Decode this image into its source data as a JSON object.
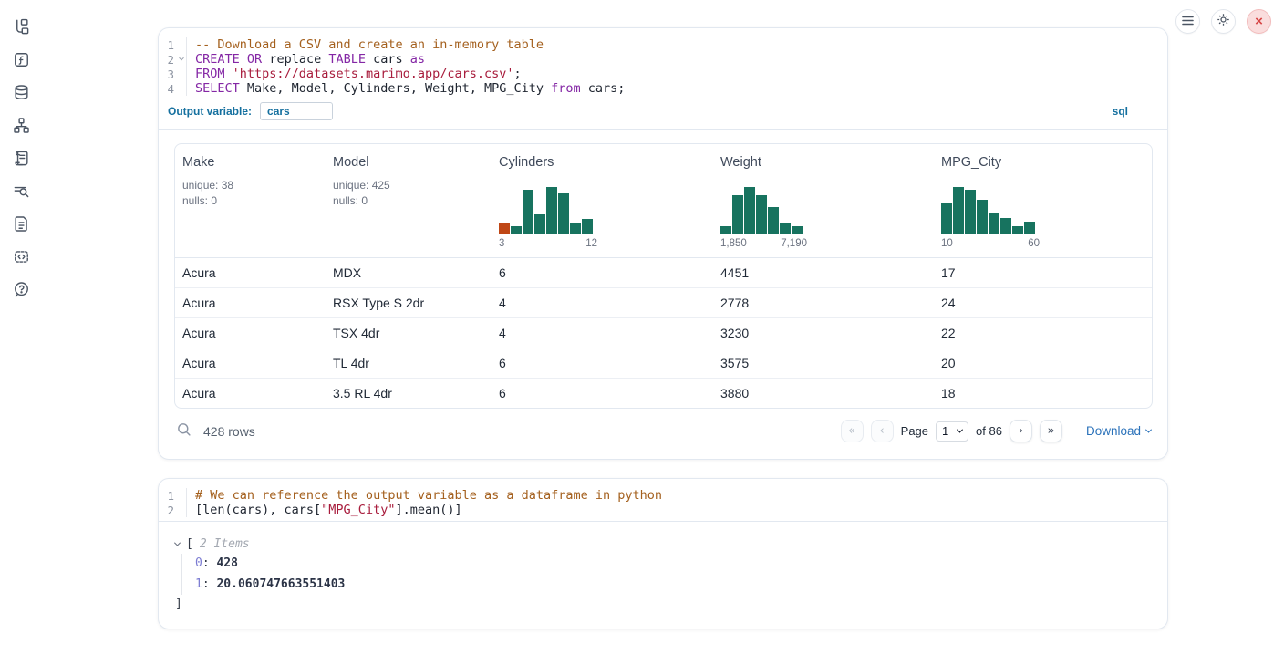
{
  "sidebar": {
    "icons": [
      {
        "name": "file-tree-icon"
      },
      {
        "name": "function-icon"
      },
      {
        "name": "database-icon"
      },
      {
        "name": "dependency-graph-icon"
      },
      {
        "name": "scratchpad-icon"
      },
      {
        "name": "logs-search-icon"
      },
      {
        "name": "documentation-icon"
      },
      {
        "name": "snippets-icon"
      },
      {
        "name": "help-icon"
      }
    ]
  },
  "topbar": {
    "buttons": [
      {
        "name": "menu-button",
        "icon": "hamburger-icon"
      },
      {
        "name": "settings-button",
        "icon": "gear-icon"
      },
      {
        "name": "shutdown-button",
        "icon": "close-icon",
        "glyph": "×"
      }
    ]
  },
  "sql_cell": {
    "lines": [
      {
        "num": "1",
        "tokens": [
          [
            "comment",
            "-- Download a CSV and create an in-memory table"
          ]
        ]
      },
      {
        "num": "2",
        "fold": true,
        "tokens": [
          [
            "keyword",
            "CREATE"
          ],
          [
            "plain",
            " "
          ],
          [
            "keyword",
            "OR"
          ],
          [
            "plain",
            " replace "
          ],
          [
            "keyword",
            "TABLE"
          ],
          [
            "plain",
            " cars "
          ],
          [
            "keyword",
            "as"
          ]
        ]
      },
      {
        "num": "3",
        "tokens": [
          [
            "keyword",
            "FROM"
          ],
          [
            "plain",
            " "
          ],
          [
            "string",
            "'https://datasets.marimo.app/cars.csv'"
          ],
          [
            "plain",
            ";"
          ]
        ]
      },
      {
        "num": "4",
        "tokens": [
          [
            "keyword",
            "SELECT"
          ],
          [
            "plain",
            " Make, Model, Cylinders, Weight, MPG_City "
          ],
          [
            "keyword",
            "from"
          ],
          [
            "plain",
            " cars;"
          ]
        ]
      }
    ],
    "output_variable_label": "Output variable:",
    "output_variable_value": "cars",
    "language_badge": "sql"
  },
  "table": {
    "columns": [
      {
        "name": "Make",
        "stats": [
          "unique: 38",
          "nulls: 0"
        ]
      },
      {
        "name": "Model",
        "stats": [
          "unique: 425",
          "nulls: 0"
        ]
      },
      {
        "name": "Cylinders",
        "histogram": {
          "min_label": "3",
          "max_label": "12",
          "bar_heights": [
            0.24,
            0.18,
            0.94,
            0.42,
            1.0,
            0.86,
            0.24,
            0.32
          ],
          "bar_colors": [
            "#bf4716",
            "#17735f",
            "#17735f",
            "#17735f",
            "#17735f",
            "#17735f",
            "#17735f",
            "#17735f"
          ]
        }
      },
      {
        "name": "Weight",
        "histogram": {
          "min_label": "1,850",
          "max_label": "7,190",
          "bar_heights": [
            0.18,
            0.82,
            1.0,
            0.82,
            0.58,
            0.24,
            0.17
          ],
          "bar_colors": [
            "#17735f",
            "#17735f",
            "#17735f",
            "#17735f",
            "#17735f",
            "#17735f",
            "#17735f"
          ]
        }
      },
      {
        "name": "MPG_City",
        "histogram": {
          "min_label": "10",
          "max_label": "60",
          "bar_heights": [
            0.68,
            1.0,
            0.94,
            0.74,
            0.46,
            0.35,
            0.18,
            0.26
          ],
          "bar_colors": [
            "#17735f",
            "#17735f",
            "#17735f",
            "#17735f",
            "#17735f",
            "#17735f",
            "#17735f",
            "#17735f"
          ]
        }
      }
    ],
    "rows": [
      [
        "Acura",
        "MDX",
        "6",
        "4451",
        "17"
      ],
      [
        "Acura",
        "RSX Type S 2dr",
        "4",
        "2778",
        "24"
      ],
      [
        "Acura",
        "TSX 4dr",
        "4",
        "3230",
        "22"
      ],
      [
        "Acura",
        "TL 4dr",
        "6",
        "3575",
        "20"
      ],
      [
        "Acura",
        "3.5 RL 4dr",
        "6",
        "3880",
        "18"
      ]
    ],
    "footer": {
      "row_count": "428 rows",
      "pagination": {
        "first": "«",
        "prev": "‹",
        "page_label": "Page",
        "page_value": "1",
        "total_label": "of 86",
        "next": "›",
        "last": "»"
      },
      "download_label": "Download"
    }
  },
  "python_cell": {
    "lines": [
      {
        "num": "1",
        "tokens": [
          [
            "comment",
            "# We can reference the output variable as a dataframe in python"
          ]
        ]
      },
      {
        "num": "2",
        "tokens": [
          [
            "plain",
            "[len(cars), cars["
          ],
          [
            "string",
            "\"MPG_City\""
          ],
          [
            "plain",
            "].mean()]"
          ]
        ]
      }
    ]
  },
  "output_tree": {
    "open_bracket": "[",
    "items_label": "2 Items",
    "items": [
      {
        "key": "0",
        "value": "428"
      },
      {
        "key": "1",
        "value": "20.060747663551403"
      }
    ],
    "close_bracket": "]"
  },
  "colors": {
    "accent_blue": "#15709f",
    "link_blue": "#2b72ba",
    "histogram_green": "#17735f",
    "histogram_orange": "#bf4716",
    "close_red": "#d64545"
  }
}
